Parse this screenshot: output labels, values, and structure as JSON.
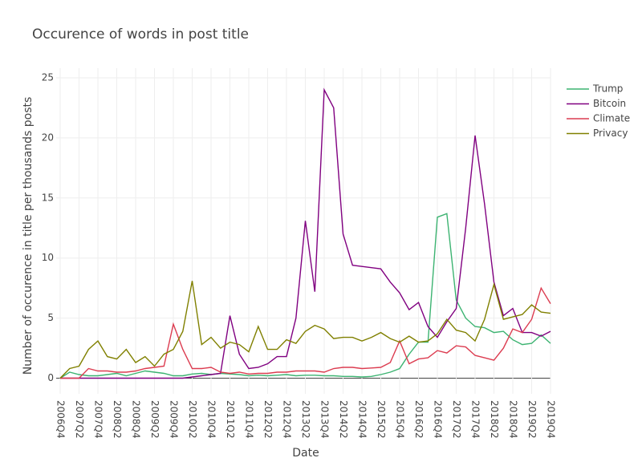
{
  "chart_data": {
    "type": "line",
    "title": "Occurence of words in post title",
    "x_label": "Date",
    "y_label": "Number of occurence in title per thousands posts",
    "categories": [
      "2006Q4",
      null,
      "2007Q2",
      null,
      "2007Q4",
      null,
      "2008Q2",
      null,
      "2008Q4",
      null,
      "2009Q2",
      null,
      "2009Q4",
      null,
      "2010Q2",
      null,
      "2010Q4",
      null,
      "2011Q2",
      null,
      "2011Q4",
      null,
      "2012Q2",
      null,
      "2012Q4",
      null,
      "2013Q2",
      null,
      "2013Q4",
      null,
      "2014Q2",
      null,
      "2014Q4",
      null,
      "2015Q2",
      null,
      "2015Q4",
      null,
      "2016Q2",
      null,
      "2016Q4",
      null,
      "2017Q2",
      null,
      "2017Q4",
      null,
      "2018Q2",
      null,
      "2018Q4",
      null,
      "2019Q2",
      null,
      "2019Q4"
    ],
    "series": [
      {
        "name": "Trump",
        "color": "#3cb371",
        "values": [
          0,
          0.5,
          0.3,
          0.2,
          0.2,
          0.3,
          0.4,
          0.2,
          0.4,
          0.6,
          0.5,
          0.4,
          0.2,
          0.2,
          0.35,
          0.4,
          0.3,
          0.4,
          0.35,
          0.3,
          0.2,
          0.25,
          0.2,
          0.25,
          0.3,
          0.2,
          0.25,
          0.25,
          0.2,
          0.2,
          0.15,
          0.15,
          0.1,
          0.15,
          0.3,
          0.5,
          0.8,
          2.0,
          3.0,
          3.0,
          13.4,
          13.7,
          6.5,
          5.0,
          4.3,
          4.2,
          3.8,
          3.9,
          3.2,
          2.8,
          2.9,
          3.6,
          2.9
        ]
      },
      {
        "name": "Bitcoin",
        "color": "#800080",
        "values": [
          0,
          0,
          0,
          0,
          0,
          0,
          0,
          0,
          0,
          0,
          0,
          0,
          0,
          0,
          0.1,
          0.2,
          0.3,
          0.4,
          5.2,
          2.0,
          0.8,
          0.9,
          1.2,
          1.8,
          1.8,
          5.0,
          13.1,
          7.2,
          24.0,
          22.5,
          12.0,
          9.4,
          9.3,
          9.2,
          9.1,
          8.0,
          7.1,
          5.7,
          6.3,
          4.3,
          3.4,
          4.7,
          5.8,
          12.5,
          20.2,
          14.5,
          8.0,
          5.2,
          5.8,
          3.8,
          3.8,
          3.5,
          3.9
        ]
      },
      {
        "name": "Climate",
        "color": "#dc3c50",
        "values": [
          0,
          0,
          0,
          0.8,
          0.6,
          0.6,
          0.5,
          0.5,
          0.6,
          0.8,
          0.9,
          1.0,
          4.5,
          2.4,
          0.8,
          0.8,
          0.9,
          0.5,
          0.4,
          0.5,
          0.35,
          0.4,
          0.4,
          0.5,
          0.5,
          0.6,
          0.6,
          0.6,
          0.5,
          0.8,
          0.9,
          0.9,
          0.8,
          0.85,
          0.9,
          1.3,
          3.1,
          1.2,
          1.6,
          1.7,
          2.3,
          2.1,
          2.7,
          2.6,
          1.9,
          1.7,
          1.5,
          2.5,
          4.1,
          3.8,
          4.9,
          7.5,
          6.2
        ]
      },
      {
        "name": "Privacy",
        "color": "#808000",
        "values": [
          0,
          0.8,
          1.0,
          2.4,
          3.1,
          1.8,
          1.6,
          2.4,
          1.3,
          1.8,
          1.0,
          2.0,
          2.4,
          3.9,
          8.1,
          2.8,
          3.4,
          2.5,
          3.0,
          2.8,
          2.2,
          4.3,
          2.4,
          2.4,
          3.2,
          2.9,
          3.9,
          4.4,
          4.1,
          3.3,
          3.4,
          3.4,
          3.1,
          3.4,
          3.8,
          3.3,
          3.0,
          3.5,
          3.0,
          3.1,
          3.7,
          4.9,
          4.0,
          3.8,
          3.1,
          4.9,
          7.8,
          4.9,
          5.1,
          5.3,
          6.1,
          5.5,
          5.4
        ]
      }
    ],
    "ylim": [
      -1.3,
      25.8
    ],
    "yticks": [
      0,
      5,
      10,
      15,
      20,
      25
    ],
    "grid": true,
    "legend": "top-right"
  }
}
